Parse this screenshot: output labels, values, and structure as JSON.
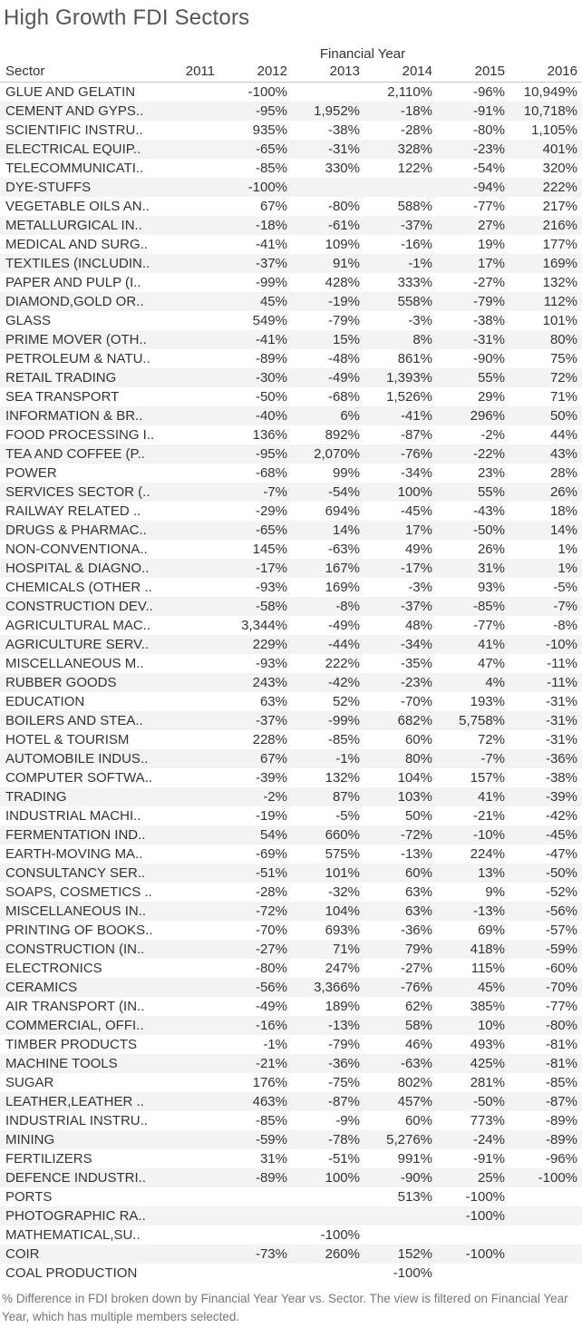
{
  "title": "High Growth FDI Sectors",
  "column_group_label": "Financial Year",
  "columns": {
    "sector": "Sector",
    "years": [
      "2011",
      "2012",
      "2013",
      "2014",
      "2015",
      "2016"
    ]
  },
  "footer": "% Difference in FDI broken down by Financial Year Year vs. Sector.  The view is filtered on Financial Year Year, which has multiple members selected.",
  "chart_data": {
    "type": "table",
    "title": "High Growth FDI Sectors",
    "column_header": "Financial Year",
    "x": [
      "2011",
      "2012",
      "2013",
      "2014",
      "2015",
      "2016"
    ],
    "rows": [
      {
        "sector": "GLUE AND GELATIN",
        "values": [
          "",
          "-100%",
          "",
          "2,110%",
          "-96%",
          "10,949%"
        ]
      },
      {
        "sector": "CEMENT AND GYPS..",
        "values": [
          "",
          "-95%",
          "1,952%",
          "-18%",
          "-91%",
          "10,718%"
        ]
      },
      {
        "sector": "SCIENTIFIC INSTRU..",
        "values": [
          "",
          "935%",
          "-38%",
          "-28%",
          "-80%",
          "1,105%"
        ]
      },
      {
        "sector": "ELECTRICAL EQUIP..",
        "values": [
          "",
          "-65%",
          "-31%",
          "328%",
          "-23%",
          "401%"
        ]
      },
      {
        "sector": "TELECOMMUNICATI..",
        "values": [
          "",
          "-85%",
          "330%",
          "122%",
          "-54%",
          "320%"
        ]
      },
      {
        "sector": "DYE-STUFFS",
        "values": [
          "",
          "-100%",
          "",
          "",
          "-94%",
          "222%"
        ]
      },
      {
        "sector": "VEGETABLE OILS AN..",
        "values": [
          "",
          "67%",
          "-80%",
          "588%",
          "-77%",
          "217%"
        ]
      },
      {
        "sector": "METALLURGICAL IN..",
        "values": [
          "",
          "-18%",
          "-61%",
          "-37%",
          "27%",
          "216%"
        ]
      },
      {
        "sector": "MEDICAL AND SURG..",
        "values": [
          "",
          "-41%",
          "109%",
          "-16%",
          "19%",
          "177%"
        ]
      },
      {
        "sector": "TEXTILES (INCLUDIN..",
        "values": [
          "",
          "-37%",
          "91%",
          "-1%",
          "17%",
          "169%"
        ]
      },
      {
        "sector": "PAPER AND PULP (I..",
        "values": [
          "",
          "-99%",
          "428%",
          "333%",
          "-27%",
          "132%"
        ]
      },
      {
        "sector": "DIAMOND,GOLD OR..",
        "values": [
          "",
          "45%",
          "-19%",
          "558%",
          "-79%",
          "112%"
        ]
      },
      {
        "sector": "GLASS",
        "values": [
          "",
          "549%",
          "-79%",
          "-3%",
          "-38%",
          "101%"
        ]
      },
      {
        "sector": "PRIME MOVER (OTH..",
        "values": [
          "",
          "-41%",
          "15%",
          "8%",
          "-31%",
          "80%"
        ]
      },
      {
        "sector": "PETROLEUM & NATU..",
        "values": [
          "",
          "-89%",
          "-48%",
          "861%",
          "-90%",
          "75%"
        ]
      },
      {
        "sector": "RETAIL TRADING",
        "values": [
          "",
          "-30%",
          "-49%",
          "1,393%",
          "55%",
          "72%"
        ]
      },
      {
        "sector": "SEA TRANSPORT",
        "values": [
          "",
          "-50%",
          "-68%",
          "1,526%",
          "29%",
          "71%"
        ]
      },
      {
        "sector": "INFORMATION & BR..",
        "values": [
          "",
          "-40%",
          "6%",
          "-41%",
          "296%",
          "50%"
        ]
      },
      {
        "sector": "FOOD PROCESSING I..",
        "values": [
          "",
          "136%",
          "892%",
          "-87%",
          "-2%",
          "44%"
        ]
      },
      {
        "sector": "TEA AND COFFEE (P..",
        "values": [
          "",
          "-95%",
          "2,070%",
          "-76%",
          "-22%",
          "43%"
        ]
      },
      {
        "sector": "POWER",
        "values": [
          "",
          "-68%",
          "99%",
          "-34%",
          "23%",
          "28%"
        ]
      },
      {
        "sector": "SERVICES SECTOR (..",
        "values": [
          "",
          "-7%",
          "-54%",
          "100%",
          "55%",
          "26%"
        ]
      },
      {
        "sector": "RAILWAY RELATED ..",
        "values": [
          "",
          "-29%",
          "694%",
          "-45%",
          "-43%",
          "18%"
        ]
      },
      {
        "sector": "DRUGS & PHARMAC..",
        "values": [
          "",
          "-65%",
          "14%",
          "17%",
          "-50%",
          "14%"
        ]
      },
      {
        "sector": "NON-CONVENTIONA..",
        "values": [
          "",
          "145%",
          "-63%",
          "49%",
          "26%",
          "1%"
        ]
      },
      {
        "sector": "HOSPITAL & DIAGNO..",
        "values": [
          "",
          "-17%",
          "167%",
          "-17%",
          "31%",
          "1%"
        ]
      },
      {
        "sector": "CHEMICALS (OTHER ..",
        "values": [
          "",
          "-93%",
          "169%",
          "-3%",
          "93%",
          "-5%"
        ]
      },
      {
        "sector": "CONSTRUCTION DEV..",
        "values": [
          "",
          "-58%",
          "-8%",
          "-37%",
          "-85%",
          "-7%"
        ]
      },
      {
        "sector": "AGRICULTURAL MAC..",
        "values": [
          "",
          "3,344%",
          "-49%",
          "48%",
          "-77%",
          "-8%"
        ]
      },
      {
        "sector": "AGRICULTURE SERV..",
        "values": [
          "",
          "229%",
          "-44%",
          "-34%",
          "41%",
          "-10%"
        ]
      },
      {
        "sector": "MISCELLANEOUS M..",
        "values": [
          "",
          "-93%",
          "222%",
          "-35%",
          "47%",
          "-11%"
        ]
      },
      {
        "sector": "RUBBER GOODS",
        "values": [
          "",
          "243%",
          "-42%",
          "-23%",
          "4%",
          "-11%"
        ]
      },
      {
        "sector": "EDUCATION",
        "values": [
          "",
          "63%",
          "52%",
          "-70%",
          "193%",
          "-31%"
        ]
      },
      {
        "sector": "BOILERS AND STEA..",
        "values": [
          "",
          "-37%",
          "-99%",
          "682%",
          "5,758%",
          "-31%"
        ]
      },
      {
        "sector": "HOTEL & TOURISM",
        "values": [
          "",
          "228%",
          "-85%",
          "60%",
          "72%",
          "-31%"
        ]
      },
      {
        "sector": "AUTOMOBILE INDUS..",
        "values": [
          "",
          "67%",
          "-1%",
          "80%",
          "-7%",
          "-36%"
        ]
      },
      {
        "sector": "COMPUTER SOFTWA..",
        "values": [
          "",
          "-39%",
          "132%",
          "104%",
          "157%",
          "-38%"
        ]
      },
      {
        "sector": "TRADING",
        "values": [
          "",
          "-2%",
          "87%",
          "103%",
          "41%",
          "-39%"
        ]
      },
      {
        "sector": "INDUSTRIAL MACHI..",
        "values": [
          "",
          "-19%",
          "-5%",
          "50%",
          "-21%",
          "-42%"
        ]
      },
      {
        "sector": "FERMENTATION IND..",
        "values": [
          "",
          "54%",
          "660%",
          "-72%",
          "-10%",
          "-45%"
        ]
      },
      {
        "sector": "EARTH-MOVING MA..",
        "values": [
          "",
          "-69%",
          "575%",
          "-13%",
          "224%",
          "-47%"
        ]
      },
      {
        "sector": "CONSULTANCY SER..",
        "values": [
          "",
          "-51%",
          "101%",
          "60%",
          "13%",
          "-50%"
        ]
      },
      {
        "sector": "SOAPS, COSMETICS ..",
        "values": [
          "",
          "-28%",
          "-32%",
          "63%",
          "9%",
          "-52%"
        ]
      },
      {
        "sector": "MISCELLANEOUS IN..",
        "values": [
          "",
          "-72%",
          "104%",
          "63%",
          "-13%",
          "-56%"
        ]
      },
      {
        "sector": "PRINTING OF BOOKS..",
        "values": [
          "",
          "-70%",
          "693%",
          "-36%",
          "69%",
          "-57%"
        ]
      },
      {
        "sector": "CONSTRUCTION (IN..",
        "values": [
          "",
          "-27%",
          "71%",
          "79%",
          "418%",
          "-59%"
        ]
      },
      {
        "sector": "ELECTRONICS",
        "values": [
          "",
          "-80%",
          "247%",
          "-27%",
          "115%",
          "-60%"
        ]
      },
      {
        "sector": "CERAMICS",
        "values": [
          "",
          "-56%",
          "3,366%",
          "-76%",
          "45%",
          "-70%"
        ]
      },
      {
        "sector": "AIR TRANSPORT (IN..",
        "values": [
          "",
          "-49%",
          "189%",
          "62%",
          "385%",
          "-77%"
        ]
      },
      {
        "sector": "COMMERCIAL, OFFI..",
        "values": [
          "",
          "-16%",
          "-13%",
          "58%",
          "10%",
          "-80%"
        ]
      },
      {
        "sector": "TIMBER PRODUCTS",
        "values": [
          "",
          "-1%",
          "-79%",
          "46%",
          "493%",
          "-81%"
        ]
      },
      {
        "sector": "MACHINE TOOLS",
        "values": [
          "",
          "-21%",
          "-36%",
          "-63%",
          "425%",
          "-81%"
        ]
      },
      {
        "sector": "SUGAR",
        "values": [
          "",
          "176%",
          "-75%",
          "802%",
          "281%",
          "-85%"
        ]
      },
      {
        "sector": "LEATHER,LEATHER ..",
        "values": [
          "",
          "463%",
          "-87%",
          "457%",
          "-50%",
          "-87%"
        ]
      },
      {
        "sector": "INDUSTRIAL INSTRU..",
        "values": [
          "",
          "-85%",
          "-9%",
          "60%",
          "773%",
          "-89%"
        ]
      },
      {
        "sector": "MINING",
        "values": [
          "",
          "-59%",
          "-78%",
          "5,276%",
          "-24%",
          "-89%"
        ]
      },
      {
        "sector": "FERTILIZERS",
        "values": [
          "",
          "31%",
          "-51%",
          "991%",
          "-91%",
          "-96%"
        ]
      },
      {
        "sector": "DEFENCE INDUSTRI..",
        "values": [
          "",
          "-89%",
          "100%",
          "-90%",
          "25%",
          "-100%"
        ]
      },
      {
        "sector": "PORTS",
        "values": [
          "",
          "",
          "",
          "513%",
          "-100%",
          ""
        ]
      },
      {
        "sector": "PHOTOGRAPHIC RA..",
        "values": [
          "",
          "",
          "",
          "",
          "-100%",
          ""
        ]
      },
      {
        "sector": "MATHEMATICAL,SU..",
        "values": [
          "",
          "",
          "-100%",
          "",
          "",
          ""
        ]
      },
      {
        "sector": "COIR",
        "values": [
          "",
          "-73%",
          "260%",
          "152%",
          "-100%",
          ""
        ]
      },
      {
        "sector": "COAL PRODUCTION",
        "values": [
          "",
          "",
          "",
          "-100%",
          "",
          ""
        ]
      }
    ]
  }
}
